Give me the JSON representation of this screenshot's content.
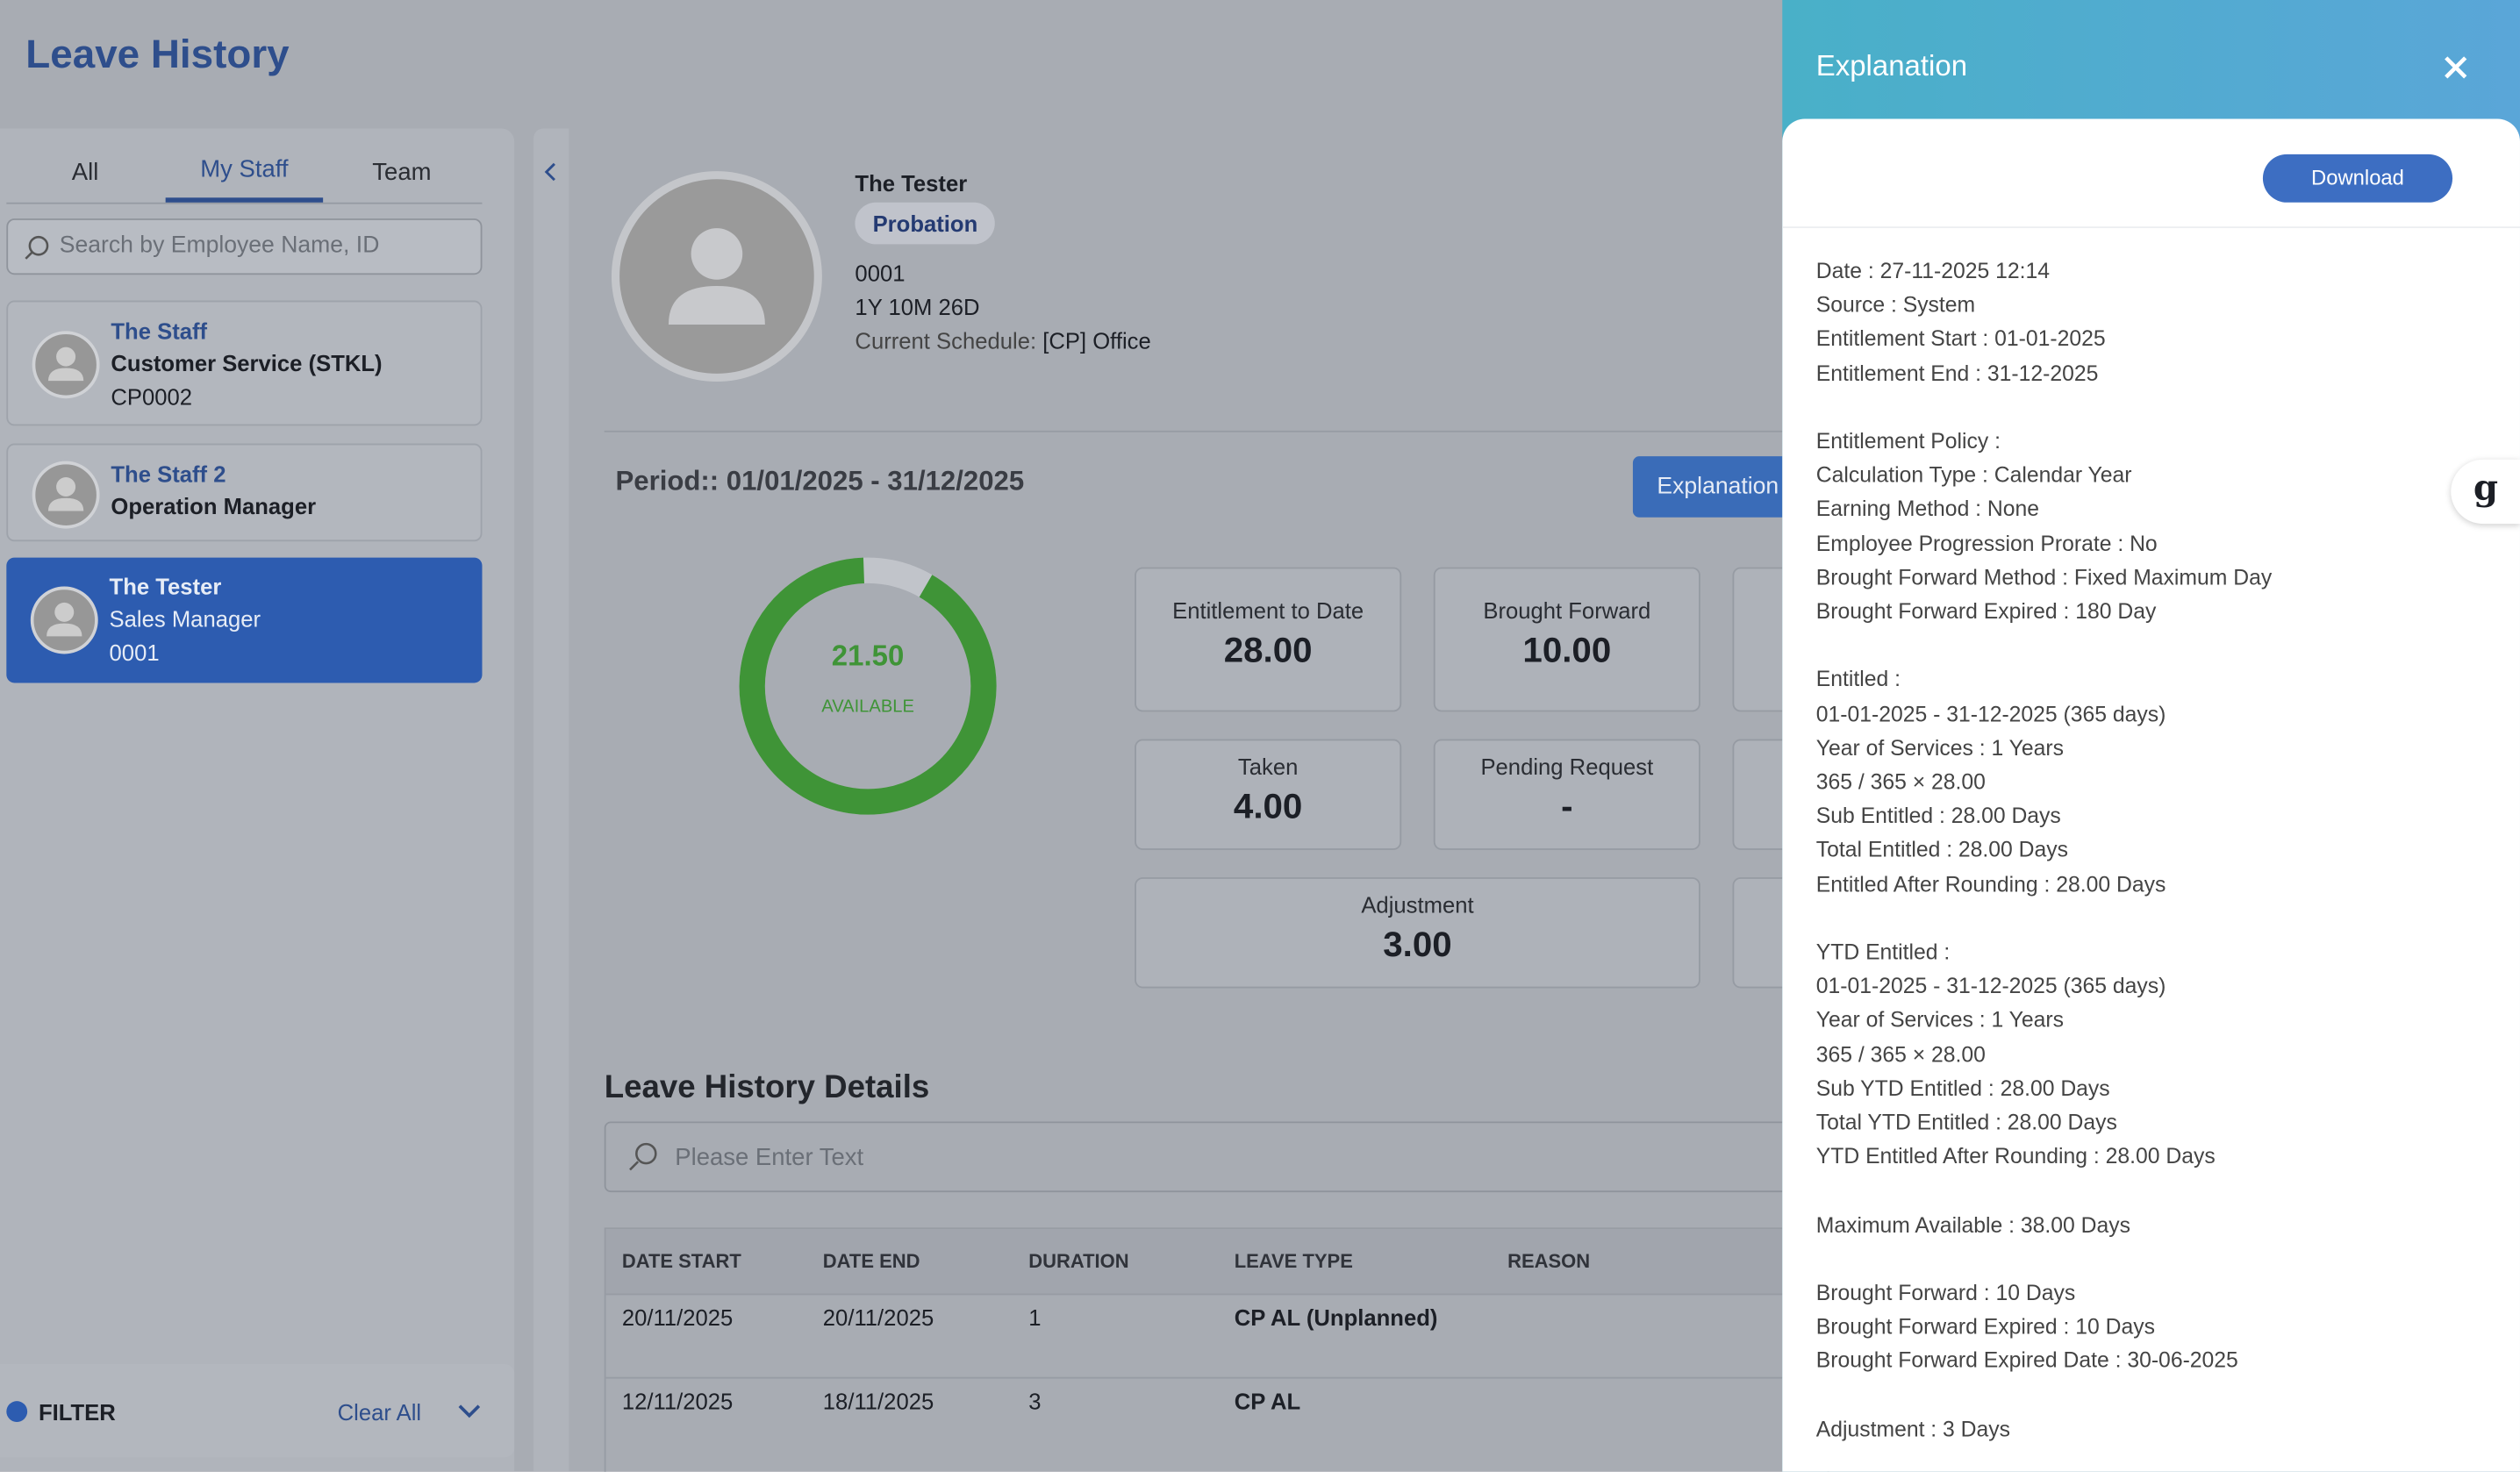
{
  "header": {
    "title": "Leave History"
  },
  "sidebar": {
    "tabs": [
      "All",
      "My Staff",
      "Team"
    ],
    "search_placeholder": "Search by Employee Name, ID",
    "employees": [
      {
        "name": "The Staff",
        "role": "Customer Service (STKL)",
        "id": "CP0002"
      },
      {
        "name": "The Staff 2",
        "role": "Operation Manager"
      },
      {
        "name": "The Tester",
        "role": "Sales Manager",
        "id": "0001"
      }
    ],
    "filter": {
      "label": "FILTER",
      "clear": "Clear All"
    }
  },
  "profile": {
    "name": "The Tester",
    "status": "Probation",
    "id": "0001",
    "tenure": "1Y 10M 26D",
    "schedule_label": "Current Schedule:",
    "schedule": "[CP] Office"
  },
  "period": "Period:: 01/01/2025 - 31/12/2025",
  "explanation_button": "Explanation",
  "donut": {
    "value": "21.50",
    "label": "AVAILABLE"
  },
  "stats": [
    {
      "label": "Entitlement to Date",
      "value": "28.00"
    },
    {
      "label": "Brought Forward",
      "value": "10.00"
    },
    {
      "label": "Taken",
      "value": "4.00"
    },
    {
      "label": "Pending Request",
      "value": "-"
    },
    {
      "label": "Adjustment",
      "value": "3.00"
    }
  ],
  "details": {
    "title": "Leave History Details",
    "search_placeholder": "Please Enter Text",
    "table": {
      "columns": [
        "DATE START",
        "DATE END",
        "DURATION",
        "LEAVE TYPE",
        "REASON"
      ],
      "rows": [
        [
          "20/11/2025",
          "20/11/2025",
          "1",
          "CP AL (Unplanned)"
        ],
        [
          "12/11/2025",
          "18/11/2025",
          "3",
          "CP AL"
        ]
      ]
    }
  },
  "panel": {
    "title": "Explanation",
    "download": "Download",
    "groups": [
      [
        "Date : 27-11-2025 12:14",
        "Source : System",
        "Entitlement Start : 01-01-2025",
        "Entitlement End : 31-12-2025"
      ],
      [
        "Entitlement Policy :",
        "Calculation Type : Calendar Year",
        "Earning Method : None",
        "Employee Progression Prorate : No",
        "Brought Forward Method : Fixed Maximum Day",
        "Brought Forward Expired : 180 Day"
      ],
      [
        "Entitled :",
        "01-01-2025 - 31-12-2025 (365 days)",
        "Year of Services : 1 Years",
        "365 / 365 × 28.00",
        "Sub Entitled : 28.00 Days",
        "Total Entitled : 28.00 Days",
        "Entitled After Rounding : 28.00 Days"
      ],
      [
        "YTD Entitled :",
        "01-01-2025 - 31-12-2025 (365 days)",
        "Year of Services : 1 Years",
        "365 / 365 × 28.00",
        "Sub YTD Entitled : 28.00 Days",
        "Total YTD Entitled : 28.00 Days",
        "YTD Entitled After Rounding : 28.00 Days"
      ],
      [
        "Maximum Available : 38.00 Days"
      ],
      [
        "Brought Forward : 10 Days",
        "Brought Forward Expired : 10 Days",
        "Brought Forward Expired Date : 30-06-2025"
      ],
      [
        "Adjustment : 3 Days"
      ]
    ]
  },
  "widget": "g"
}
